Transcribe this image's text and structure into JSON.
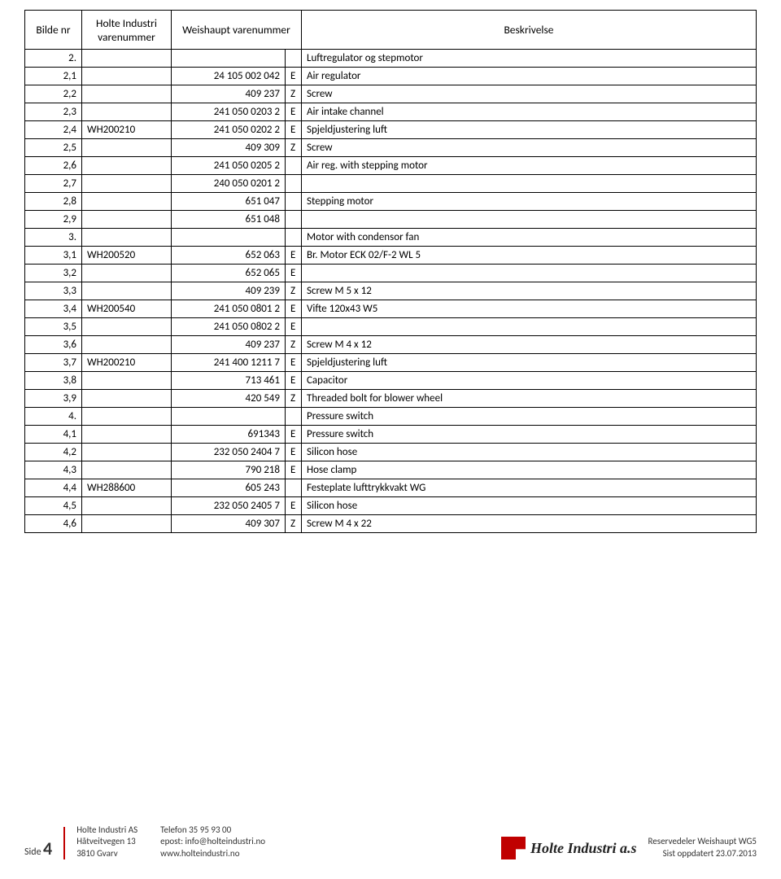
{
  "header": {
    "col1": "Bilde nr",
    "col2": "Holte Industri varenummer",
    "col3": "Weishaupt varenummer",
    "col4": "Beskrivelse"
  },
  "rows": [
    {
      "c1": "2.",
      "c2": "",
      "c3": "",
      "c4": "",
      "c5": "Luftregulator og stepmotor"
    },
    {
      "c1": "2,1",
      "c2": "",
      "c3": "24 105 002 042",
      "c4": "E",
      "c5": "Air regulator"
    },
    {
      "c1": "2,2",
      "c2": "",
      "c3": "409 237",
      "c4": "Z",
      "c5": "Screw"
    },
    {
      "c1": "2,3",
      "c2": "",
      "c3": "241 050 0203 2",
      "c4": "E",
      "c5": "Air intake channel"
    },
    {
      "c1": "2,4",
      "c2": "WH200210",
      "c3": "241 050 0202 2",
      "c4": "E",
      "c5": "Spjeldjustering luft"
    },
    {
      "c1": "2,5",
      "c2": "",
      "c3": "409 309",
      "c4": "Z",
      "c5": "Screw"
    },
    {
      "c1": "2,6",
      "c2": "",
      "c3": "241 050 0205 2",
      "c4": "",
      "c5": "Air reg. with stepping motor"
    },
    {
      "c1": "2,7",
      "c2": "",
      "c3": "240 050 0201 2",
      "c4": "",
      "c5": ""
    },
    {
      "c1": "2,8",
      "c2": "",
      "c3": "651 047",
      "c4": "",
      "c5": "Stepping motor"
    },
    {
      "c1": "2,9",
      "c2": "",
      "c3": "651 048",
      "c4": "",
      "c5": ""
    },
    {
      "c1": "3.",
      "c2": "",
      "c3": "",
      "c4": "",
      "c5": "Motor with condensor fan"
    },
    {
      "c1": "3,1",
      "c2": "WH200520",
      "c3": "652 063",
      "c4": "E",
      "c5": "Br. Motor ECK 02/F-2 WL 5"
    },
    {
      "c1": "3,2",
      "c2": "",
      "c3": "652 065",
      "c4": "E",
      "c5": ""
    },
    {
      "c1": "3,3",
      "c2": "",
      "c3": "409 239",
      "c4": "Z",
      "c5": "Screw M 5 x 12"
    },
    {
      "c1": "3,4",
      "c2": "WH200540",
      "c3": "241 050 0801 2",
      "c4": "E",
      "c5": "Vifte 120x43 W5"
    },
    {
      "c1": "3,5",
      "c2": "",
      "c3": "241 050 0802 2",
      "c4": "E",
      "c5": ""
    },
    {
      "c1": "3,6",
      "c2": "",
      "c3": "409 237",
      "c4": "Z",
      "c5": "Screw M 4 x 12"
    },
    {
      "c1": "3,7",
      "c2": "WH200210",
      "c3": "241 400 1211 7",
      "c4": "E",
      "c5": "Spjeldjustering luft"
    },
    {
      "c1": "3,8",
      "c2": "",
      "c3": "713 461",
      "c4": "E",
      "c5": "Capacitor"
    },
    {
      "c1": "3,9",
      "c2": "",
      "c3": "420 549",
      "c4": "Z",
      "c5": "Threaded bolt for blower wheel"
    },
    {
      "c1": "4.",
      "c2": "",
      "c3": "",
      "c4": "",
      "c5": "Pressure switch"
    },
    {
      "c1": "4,1",
      "c2": "",
      "c3": "691343",
      "c4": "E",
      "c5": "Pressure switch"
    },
    {
      "c1": "4,2",
      "c2": "",
      "c3": "232 050 2404 7",
      "c4": "E",
      "c5": "Silicon hose"
    },
    {
      "c1": "4,3",
      "c2": "",
      "c3": "790 218",
      "c4": "E",
      "c5": "Hose clamp"
    },
    {
      "c1": "4,4",
      "c2": "WH288600",
      "c3": "605 243",
      "c4": "",
      "c5": "Festeplate lufttrykkvakt WG"
    },
    {
      "c1": "4,5",
      "c2": "",
      "c3": "232 050 2405 7",
      "c4": "E",
      "c5": "Silicon hose"
    },
    {
      "c1": "4,6",
      "c2": "",
      "c3": "409 307",
      "c4": "Z",
      "c5": "Screw M 4 x 22"
    }
  ],
  "footer": {
    "side_label": "Side",
    "side_num": "4",
    "company": "Holte Industri AS",
    "addr1": "Håtveitvegen 13",
    "addr2": "3810 Gvarv",
    "phone": "Telefon 35 95 93 00",
    "email": "epost: info@holteindustri.no",
    "web": "www.holteindustri.no",
    "logo_text": "Holte Industri a.s",
    "doc_title": "Reservedeler Weishaupt WG5",
    "updated": "Sist oppdatert 23.07.2013"
  },
  "style": {
    "accent_color": "#c00000",
    "border_color": "#000000",
    "font_size_body": 13,
    "font_size_footer": 11
  }
}
